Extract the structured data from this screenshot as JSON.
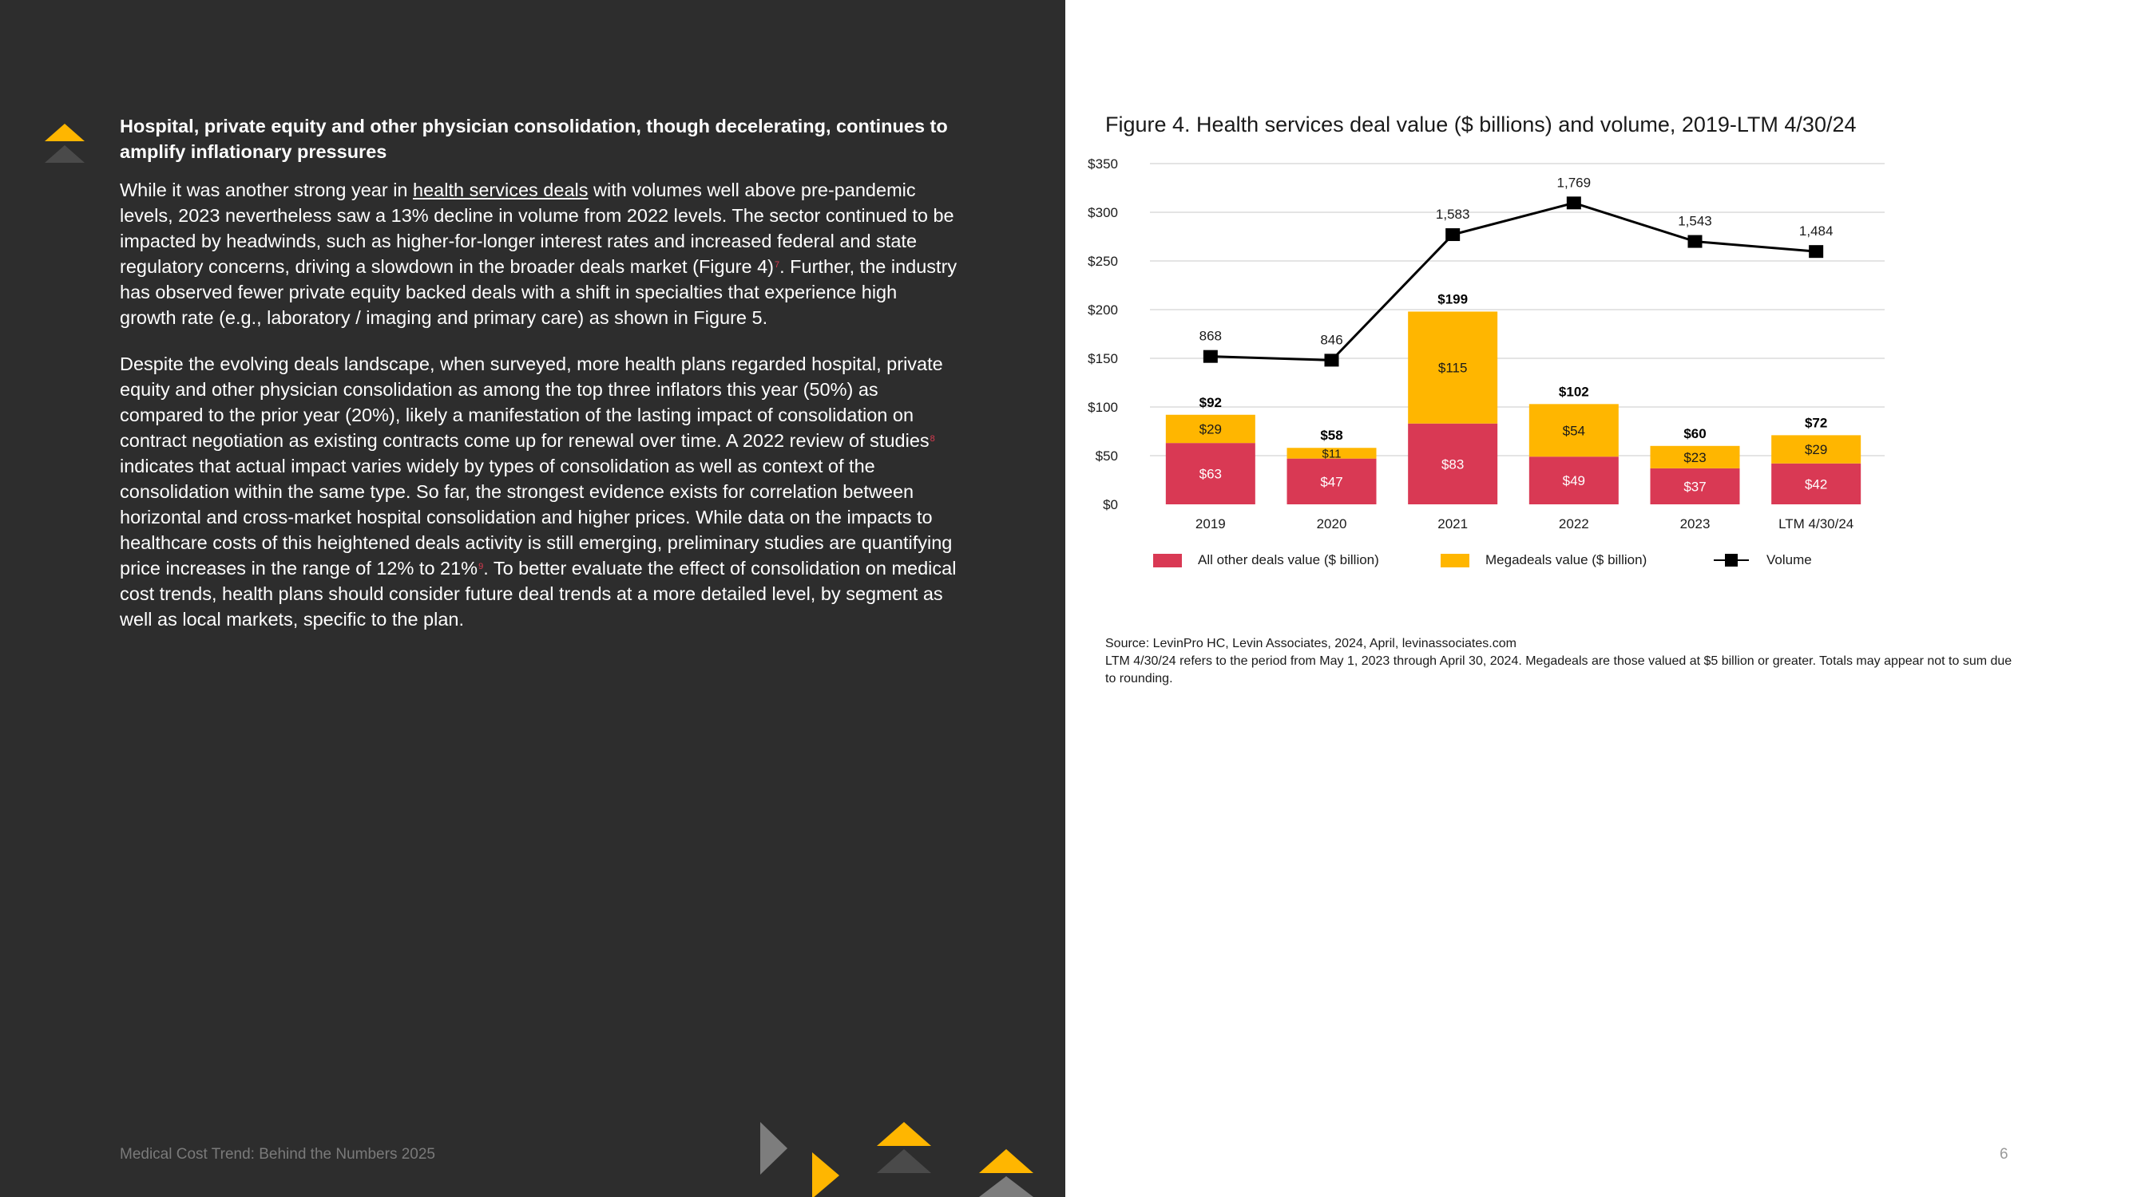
{
  "left": {
    "heading": "Hospital, private equity and other physician consolidation, though decelerating, continues to amplify inflationary pressures",
    "p1_before_link": "While it was another strong year in ",
    "p1_link": "health services deals",
    "p1_after_link": " with volumes well above pre-pandemic levels, 2023 nevertheless saw a 13% decline in volume from 2022 levels. The sector continued to be impacted by headwinds, such as higher-for-longer interest rates and increased federal and state regulatory concerns, driving a slowdown in the broader deals market (Figure 4)",
    "p1_sup": "7",
    "p1_end": ". Further, the industry has observed fewer private equity backed deals with a shift in specialties that experience high growth rate (e.g., laboratory / imaging and primary care) as shown in Figure 5.",
    "p2_a": "Despite the evolving deals landscape, when surveyed, more health plans regarded hospital, private equity and other physician consolidation as among the top three inflators this year (50%) as compared to the prior year (20%), likely a manifestation of the lasting impact of consolidation on contract negotiation as existing contracts come up for renewal over time. A 2022 review of studies",
    "p2_sup1": "8",
    "p2_b": " indicates that actual impact varies widely by types of consolidation as well as context of the consolidation within the same type. So far, the strongest evidence exists for correlation between horizontal and cross-market hospital consolidation and higher prices. While data on the impacts to healthcare costs of this heightened deals activity is still emerging, preliminary studies are quantifying price increases in the range of 12% to 21%",
    "p2_sup2": "9",
    "p2_c": ". To better evaluate the effect of consolidation on medical cost trends, health plans should consider future deal trends at a more detailed level, by segment as well as local markets, specific to the plan.",
    "footer": "Medical Cost Trend: Behind the Numbers 2025"
  },
  "colors": {
    "panel": "#2d2d2d",
    "accent_yellow": "#ffb600",
    "accent_gray": "#7d7d7d",
    "other_deals": "#d93954",
    "megadeals": "#ffb600",
    "volume": "#000000"
  },
  "figure_title": "Figure 4. Health services deal value ($ billions) and volume, 2019-LTM 4/30/24",
  "source_line1": "Source: LevinPro HC, Levin Associates, 2024, April, levinassociates.com",
  "source_line2": "LTM 4/30/24 refers to the period from May 1, 2023 through April 30, 2024. Megadeals are those valued at $5 billion or greater. Totals may appear not to sum due to rounding.",
  "page_number": "6",
  "chart_data": {
    "type": "bar",
    "stacked": true,
    "title": "Figure 4. Health services deal value ($ billions) and volume, 2019-LTM 4/30/24",
    "categories": [
      "2019",
      "2020",
      "2021",
      "2022",
      "2023",
      "LTM 4/30/24"
    ],
    "series": [
      {
        "name": "All other deals value ($ billion)",
        "values": [
          63,
          47,
          83,
          49,
          37,
          42
        ],
        "labels": [
          "$63",
          "$47",
          "$83",
          "$49",
          "$37",
          "$42"
        ]
      },
      {
        "name": "Megadeals value ($ billion)",
        "values": [
          29,
          11,
          115,
          54,
          23,
          29
        ],
        "labels": [
          "$29",
          "$11",
          "$115",
          "$54",
          "$23",
          "$29"
        ]
      }
    ],
    "totals": [
      92,
      58,
      199,
      102,
      60,
      72
    ],
    "total_labels": [
      "$92",
      "$58",
      "$199",
      "$102",
      "$60",
      "$72"
    ],
    "volume": {
      "name": "Volume",
      "type": "line",
      "values": [
        868,
        846,
        1583,
        1769,
        1543,
        1484
      ],
      "labels": [
        "868",
        "846",
        "1,583",
        "1,769",
        "1,543",
        "1,484"
      ]
    },
    "ylim": [
      0,
      350
    ],
    "yticks": [
      0,
      50,
      100,
      150,
      200,
      250,
      300,
      350
    ],
    "ytick_labels": [
      "$0",
      "$50",
      "$100",
      "$150",
      "$200",
      "$250",
      "$300",
      "$350"
    ],
    "xlabel": "",
    "ylabel": "",
    "legend_position": "bottom",
    "grid": true
  }
}
